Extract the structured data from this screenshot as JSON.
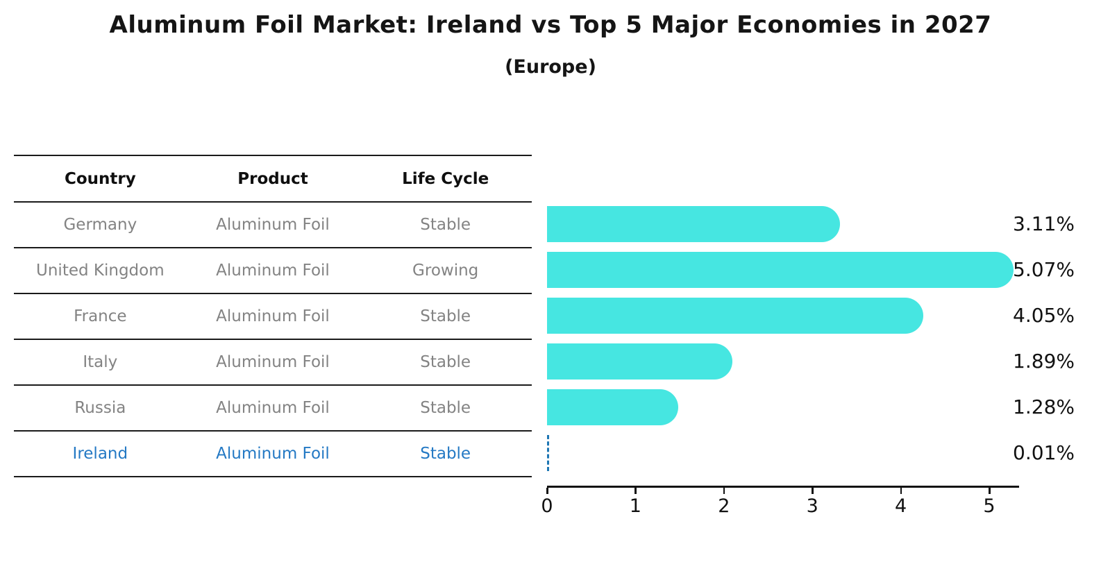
{
  "title": "Aluminum Foil Market: Ireland vs Top 5 Major Economies in 2027",
  "subtitle": "(Europe)",
  "table": {
    "headers": [
      "Country",
      "Product",
      "Life Cycle"
    ],
    "rows": [
      {
        "country": "Germany",
        "product": "Aluminum Foil",
        "life_cycle": "Stable",
        "highlight": false
      },
      {
        "country": "United Kingdom",
        "product": "Aluminum Foil",
        "life_cycle": "Growing",
        "highlight": false
      },
      {
        "country": "France",
        "product": "Aluminum Foil",
        "life_cycle": "Stable",
        "highlight": false
      },
      {
        "country": "Italy",
        "product": "Aluminum Foil",
        "life_cycle": "Stable",
        "highlight": false
      },
      {
        "country": "Russia",
        "product": "Aluminum Foil",
        "life_cycle": "Stable",
        "highlight": false
      },
      {
        "country": "Ireland",
        "product": "Aluminum Foil",
        "life_cycle": "Stable",
        "highlight": true
      }
    ]
  },
  "chart_data": {
    "type": "bar",
    "orientation": "horizontal",
    "title": "Aluminum Foil Market: Ireland vs Top 5 Major Economies in 2027 (Europe)",
    "categories": [
      "Germany",
      "United Kingdom",
      "France",
      "Italy",
      "Russia",
      "Ireland"
    ],
    "values": [
      3.11,
      5.07,
      4.05,
      1.89,
      1.28,
      0.01
    ],
    "value_labels": [
      "3.11%",
      "5.07%",
      "4.05%",
      "1.89%",
      "1.28%",
      "0.01%"
    ],
    "x_ticks": [
      0,
      1,
      2,
      3,
      4,
      5
    ],
    "xlim": [
      0,
      5.35
    ],
    "xlabel": "",
    "ylabel": "",
    "grid": false,
    "legend": false,
    "bar_color": "#46E6E1",
    "highlight_index": 5,
    "highlight_style": "dashed-zero-line",
    "highlight_color": "#1f77b4"
  },
  "colors": {
    "background": "#ffffff",
    "table_line": "#1a1a1a",
    "muted_text": "#838383",
    "highlight_text": "#2479c4",
    "axis": "#111111",
    "value_text": "#111111"
  }
}
